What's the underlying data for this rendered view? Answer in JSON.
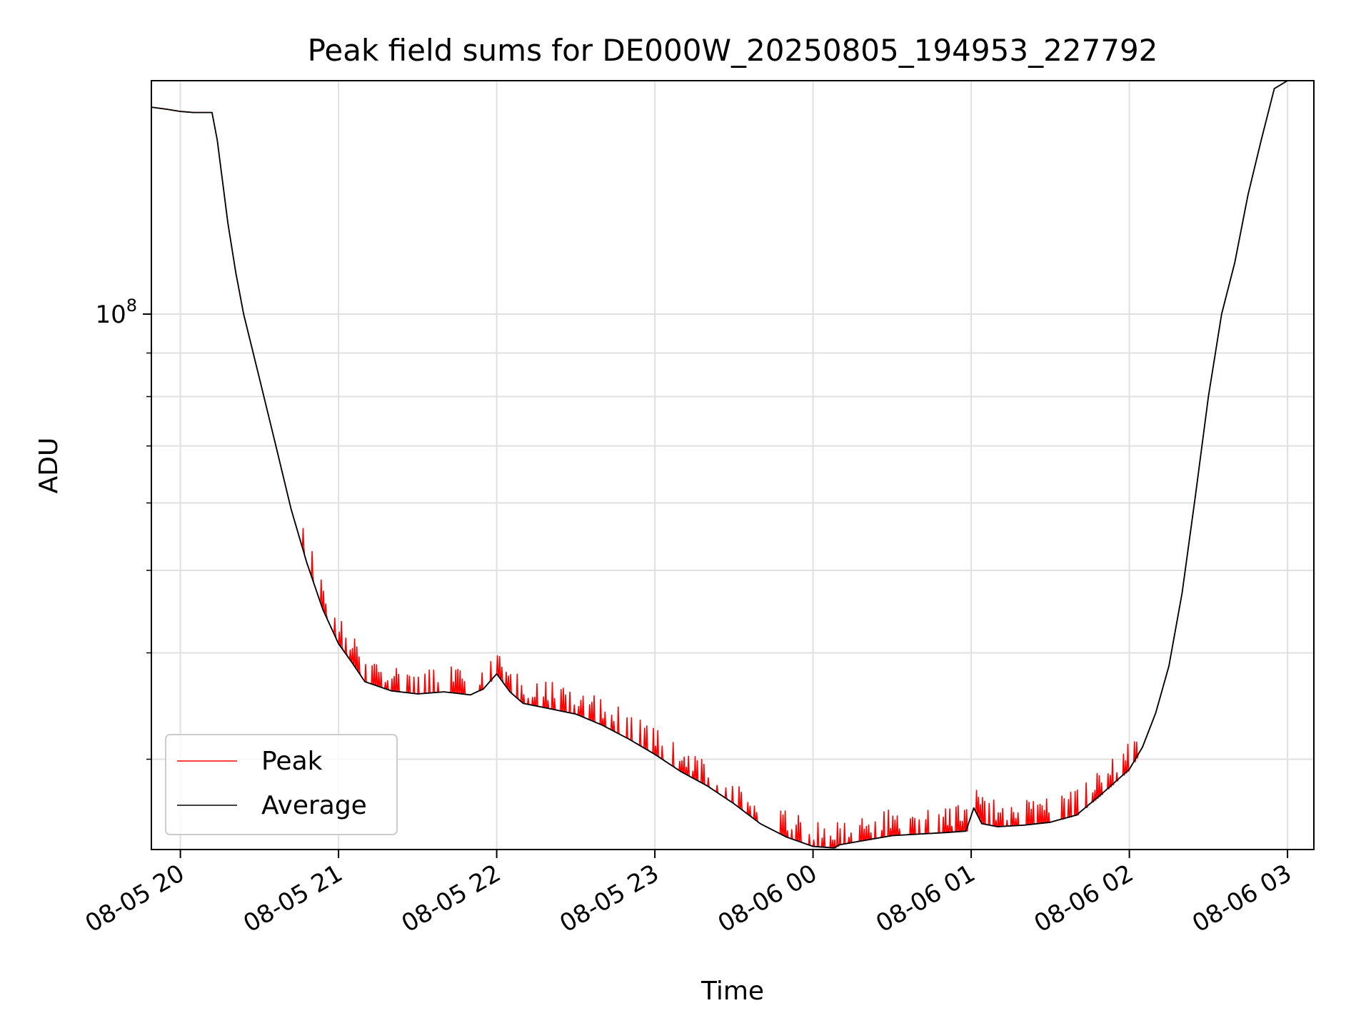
{
  "chart_data": {
    "type": "line",
    "title": "Peak field sums for DE000W_20250805_194953_227792",
    "xlabel": "Time",
    "ylabel": "ADU",
    "yscale": "log",
    "grid": true,
    "legend_position": "lower-left",
    "xlim": [
      "2025-08-05 19:49",
      "2025-08-06 03:10"
    ],
    "ylim": [
      23500000,
      188000000
    ],
    "x_ticks": [
      {
        "time": "2025-08-05 20:00",
        "label": "08-05 20"
      },
      {
        "time": "2025-08-05 21:00",
        "label": "08-05 21"
      },
      {
        "time": "2025-08-05 22:00",
        "label": "08-05 22"
      },
      {
        "time": "2025-08-05 23:00",
        "label": "08-05 23"
      },
      {
        "time": "2025-08-06 00:00",
        "label": "08-06 00"
      },
      {
        "time": "2025-08-06 01:00",
        "label": "08-06 01"
      },
      {
        "time": "2025-08-06 02:00",
        "label": "08-06 02"
      },
      {
        "time": "2025-08-06 03:00",
        "label": "08-06 03"
      }
    ],
    "y_major_ticks": [
      {
        "value": 100000000,
        "base": "10",
        "exponent": "8"
      }
    ],
    "y_minor_ticks": [
      30000000,
      40000000,
      50000000,
      60000000,
      70000000,
      80000000,
      90000000
    ],
    "series": [
      {
        "name": "Peak",
        "color": "#ff0000",
        "style": "solid",
        "spiky": true,
        "points": [
          [
            "2025-08-05 19:49",
            175000000
          ],
          [
            "2025-08-05 19:55",
            174000000
          ],
          [
            "2025-08-05 20:00",
            173000000
          ],
          [
            "2025-08-05 20:05",
            172500000
          ],
          [
            "2025-08-05 20:12",
            172500000
          ],
          [
            "2025-08-05 20:14",
            160000000
          ],
          [
            "2025-08-05 20:18",
            128000000
          ],
          [
            "2025-08-05 20:21",
            112000000
          ],
          [
            "2025-08-05 20:24",
            100000000
          ],
          [
            "2025-08-05 20:30",
            84000000
          ],
          [
            "2025-08-05 20:36",
            70500000
          ],
          [
            "2025-08-05 20:42",
            59000000
          ],
          [
            "2025-08-05 20:48",
            51000000
          ],
          [
            "2025-08-05 20:54",
            45000000
          ],
          [
            "2025-08-05 21:00",
            41000000
          ],
          [
            "2025-08-05 21:05",
            39000000
          ],
          [
            "2025-08-05 21:10",
            37000000
          ],
          [
            "2025-08-05 21:20",
            36100000
          ],
          [
            "2025-08-05 21:30",
            35800000
          ],
          [
            "2025-08-05 21:40",
            36000000
          ],
          [
            "2025-08-05 21:50",
            35700000
          ],
          [
            "2025-08-05 21:55",
            36300000
          ],
          [
            "2025-08-05 22:00",
            37800000
          ],
          [
            "2025-08-05 22:05",
            36000000
          ],
          [
            "2025-08-05 22:10",
            34900000
          ],
          [
            "2025-08-05 22:20",
            34400000
          ],
          [
            "2025-08-05 22:30",
            33900000
          ],
          [
            "2025-08-05 22:40",
            32900000
          ],
          [
            "2025-08-05 22:50",
            31700000
          ],
          [
            "2025-08-05 23:00",
            30400000
          ],
          [
            "2025-08-05 23:10",
            29000000
          ],
          [
            "2025-08-05 23:20",
            27900000
          ],
          [
            "2025-08-05 23:30",
            26600000
          ],
          [
            "2025-08-05 23:40",
            25200000
          ],
          [
            "2025-08-05 23:50",
            24300000
          ],
          [
            "2025-08-06 00:00",
            23700000
          ],
          [
            "2025-08-06 00:08",
            23600000
          ],
          [
            "2025-08-06 00:10",
            23800000
          ],
          [
            "2025-08-06 00:20",
            24100000
          ],
          [
            "2025-08-06 00:30",
            24400000
          ],
          [
            "2025-08-06 00:40",
            24500000
          ],
          [
            "2025-08-06 00:50",
            24600000
          ],
          [
            "2025-08-06 00:58",
            24700000
          ],
          [
            "2025-08-06 01:01",
            26300000
          ],
          [
            "2025-08-06 01:04",
            25200000
          ],
          [
            "2025-08-06 01:10",
            25000000
          ],
          [
            "2025-08-06 01:20",
            25100000
          ],
          [
            "2025-08-06 01:30",
            25300000
          ],
          [
            "2025-08-06 01:40",
            25800000
          ],
          [
            "2025-08-06 01:50",
            27400000
          ],
          [
            "2025-08-06 02:00",
            29200000
          ],
          [
            "2025-08-06 02:05",
            31000000
          ],
          [
            "2025-08-06 02:10",
            34000000
          ],
          [
            "2025-08-06 02:15",
            38600000
          ],
          [
            "2025-08-06 02:20",
            47000000
          ],
          [
            "2025-08-06 02:25",
            61000000
          ],
          [
            "2025-08-06 02:30",
            80000000
          ],
          [
            "2025-08-06 02:35",
            100000000
          ],
          [
            "2025-08-06 02:40",
            115000000
          ],
          [
            "2025-08-06 02:45",
            138000000
          ],
          [
            "2025-08-06 02:50",
            160000000
          ],
          [
            "2025-08-06 02:55",
            184000000
          ],
          [
            "2025-08-06 03:00",
            188000000
          ]
        ]
      },
      {
        "name": "Average",
        "color": "#000000",
        "style": "solid",
        "spiky": false,
        "points": [
          [
            "2025-08-05 19:49",
            175000000
          ],
          [
            "2025-08-05 19:55",
            174000000
          ],
          [
            "2025-08-05 20:00",
            173000000
          ],
          [
            "2025-08-05 20:05",
            172500000
          ],
          [
            "2025-08-05 20:12",
            172500000
          ],
          [
            "2025-08-05 20:14",
            160000000
          ],
          [
            "2025-08-05 20:18",
            128000000
          ],
          [
            "2025-08-05 20:21",
            112000000
          ],
          [
            "2025-08-05 20:24",
            100000000
          ],
          [
            "2025-08-05 20:30",
            84000000
          ],
          [
            "2025-08-05 20:36",
            70500000
          ],
          [
            "2025-08-05 20:42",
            59000000
          ],
          [
            "2025-08-05 20:48",
            51000000
          ],
          [
            "2025-08-05 20:54",
            45000000
          ],
          [
            "2025-08-05 21:00",
            41000000
          ],
          [
            "2025-08-05 21:05",
            39000000
          ],
          [
            "2025-08-05 21:10",
            37000000
          ],
          [
            "2025-08-05 21:20",
            36100000
          ],
          [
            "2025-08-05 21:30",
            35800000
          ],
          [
            "2025-08-05 21:40",
            36000000
          ],
          [
            "2025-08-05 21:50",
            35700000
          ],
          [
            "2025-08-05 21:55",
            36300000
          ],
          [
            "2025-08-05 22:00",
            37800000
          ],
          [
            "2025-08-05 22:05",
            36000000
          ],
          [
            "2025-08-05 22:10",
            34900000
          ],
          [
            "2025-08-05 22:20",
            34400000
          ],
          [
            "2025-08-05 22:30",
            33900000
          ],
          [
            "2025-08-05 22:40",
            32900000
          ],
          [
            "2025-08-05 22:50",
            31700000
          ],
          [
            "2025-08-05 23:00",
            30400000
          ],
          [
            "2025-08-05 23:10",
            29000000
          ],
          [
            "2025-08-05 23:20",
            27900000
          ],
          [
            "2025-08-05 23:30",
            26600000
          ],
          [
            "2025-08-05 23:40",
            25200000
          ],
          [
            "2025-08-05 23:50",
            24300000
          ],
          [
            "2025-08-06 00:00",
            23700000
          ],
          [
            "2025-08-06 00:08",
            23600000
          ],
          [
            "2025-08-06 00:10",
            23800000
          ],
          [
            "2025-08-06 00:20",
            24100000
          ],
          [
            "2025-08-06 00:30",
            24400000
          ],
          [
            "2025-08-06 00:40",
            24500000
          ],
          [
            "2025-08-06 00:50",
            24600000
          ],
          [
            "2025-08-06 00:58",
            24700000
          ],
          [
            "2025-08-06 01:01",
            26300000
          ],
          [
            "2025-08-06 01:04",
            25200000
          ],
          [
            "2025-08-06 01:10",
            25000000
          ],
          [
            "2025-08-06 01:20",
            25100000
          ],
          [
            "2025-08-06 01:30",
            25300000
          ],
          [
            "2025-08-06 01:40",
            25800000
          ],
          [
            "2025-08-06 01:50",
            27400000
          ],
          [
            "2025-08-06 02:00",
            29200000
          ],
          [
            "2025-08-06 02:05",
            31000000
          ],
          [
            "2025-08-06 02:10",
            34000000
          ],
          [
            "2025-08-06 02:15",
            38600000
          ],
          [
            "2025-08-06 02:20",
            47000000
          ],
          [
            "2025-08-06 02:25",
            61000000
          ],
          [
            "2025-08-06 02:30",
            80000000
          ],
          [
            "2025-08-06 02:35",
            100000000
          ],
          [
            "2025-08-06 02:40",
            115000000
          ],
          [
            "2025-08-06 02:45",
            138000000
          ],
          [
            "2025-08-06 02:50",
            160000000
          ],
          [
            "2025-08-06 02:55",
            184000000
          ],
          [
            "2025-08-06 03:00",
            188000000
          ]
        ]
      }
    ]
  }
}
